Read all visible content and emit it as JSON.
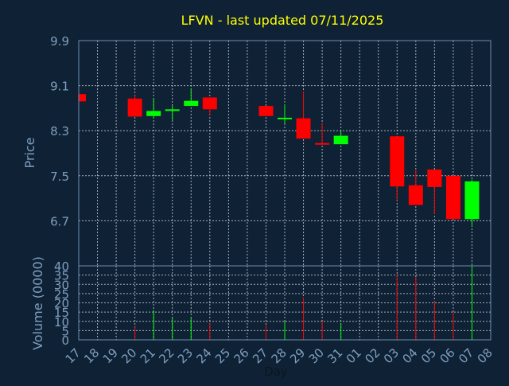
{
  "chart_data": {
    "type": "candlestick",
    "title": "LFVN - last updated 07/11/2025",
    "xlabel": "Day",
    "ylabel": "Price",
    "volume_label": "Volume (0000)",
    "x_ticks": [
      "17",
      "18",
      "19",
      "20",
      "21",
      "22",
      "23",
      "24",
      "25",
      "26",
      "27",
      "28",
      "29",
      "30",
      "31",
      "01",
      "02",
      "03",
      "04",
      "05",
      "06",
      "07",
      "08"
    ],
    "price_axis": {
      "ylim": [
        5.9,
        9.9
      ],
      "ticks": [
        "9.9",
        "9.1",
        "8.3",
        "7.5",
        "6.7"
      ],
      "tick_values": [
        9.9,
        9.1,
        8.3,
        7.5,
        6.7
      ]
    },
    "volume_axis": {
      "ylim": [
        0,
        40
      ],
      "ticks": [
        "40",
        "35",
        "30",
        "25",
        "20",
        "15",
        "10",
        "5",
        "0"
      ],
      "tick_values": [
        40,
        35,
        30,
        25,
        20,
        15,
        10,
        5,
        0
      ]
    },
    "grid": true,
    "colors": {
      "background": "#0f2134",
      "title": "#ffff00",
      "axis_text": "#7f9fbf",
      "up": "#00ff00",
      "down": "#ff0000",
      "frame": "#6f8faf"
    },
    "candles": [
      {
        "day": "17",
        "open": 8.95,
        "high": 8.95,
        "low": 8.82,
        "close": 8.82
      },
      {
        "day": "20",
        "open": 8.87,
        "high": 8.93,
        "low": 8.55,
        "close": 8.55
      },
      {
        "day": "21",
        "open": 8.56,
        "high": 8.87,
        "low": 8.52,
        "close": 8.65
      },
      {
        "day": "22",
        "open": 8.65,
        "high": 8.74,
        "low": 8.48,
        "close": 8.68
      },
      {
        "day": "23",
        "open": 8.74,
        "high": 9.04,
        "low": 8.74,
        "close": 8.83
      },
      {
        "day": "24",
        "open": 8.89,
        "high": 8.89,
        "low": 8.58,
        "close": 8.68
      },
      {
        "day": "27",
        "open": 8.74,
        "high": 8.74,
        "low": 8.56,
        "close": 8.56
      },
      {
        "day": "28",
        "open": 8.52,
        "high": 8.77,
        "low": 8.42,
        "close": 8.53
      },
      {
        "day": "29",
        "open": 8.52,
        "high": 9.0,
        "low": 8.16,
        "close": 8.16
      },
      {
        "day": "30",
        "open": 8.08,
        "high": 8.44,
        "low": 8.08,
        "close": 8.07
      },
      {
        "day": "31",
        "open": 8.06,
        "high": 8.3,
        "low": 8.06,
        "close": 8.21
      },
      {
        "day": "03",
        "open": 8.2,
        "high": 8.2,
        "low": 7.06,
        "close": 7.31
      },
      {
        "day": "04",
        "open": 7.33,
        "high": 7.6,
        "low": 6.98,
        "close": 6.98
      },
      {
        "day": "05",
        "open": 7.61,
        "high": 7.61,
        "low": 6.82,
        "close": 7.3
      },
      {
        "day": "06",
        "open": 7.5,
        "high": 7.5,
        "low": 6.73,
        "close": 6.73
      },
      {
        "day": "07",
        "open": 6.73,
        "high": 7.43,
        "low": 6.6,
        "close": 7.4
      }
    ],
    "volume": [
      {
        "day": "17",
        "value": 0
      },
      {
        "day": "20",
        "value": 7
      },
      {
        "day": "21",
        "value": 16
      },
      {
        "day": "22",
        "value": 12
      },
      {
        "day": "23",
        "value": 12
      },
      {
        "day": "24",
        "value": 9
      },
      {
        "day": "27",
        "value": 8
      },
      {
        "day": "28",
        "value": 10
      },
      {
        "day": "29",
        "value": 23
      },
      {
        "day": "30",
        "value": 10
      },
      {
        "day": "31",
        "value": 9
      },
      {
        "day": "03",
        "value": 35
      },
      {
        "day": "04",
        "value": 34
      },
      {
        "day": "05",
        "value": 21
      },
      {
        "day": "06",
        "value": 15
      },
      {
        "day": "07",
        "value": 40
      }
    ]
  }
}
